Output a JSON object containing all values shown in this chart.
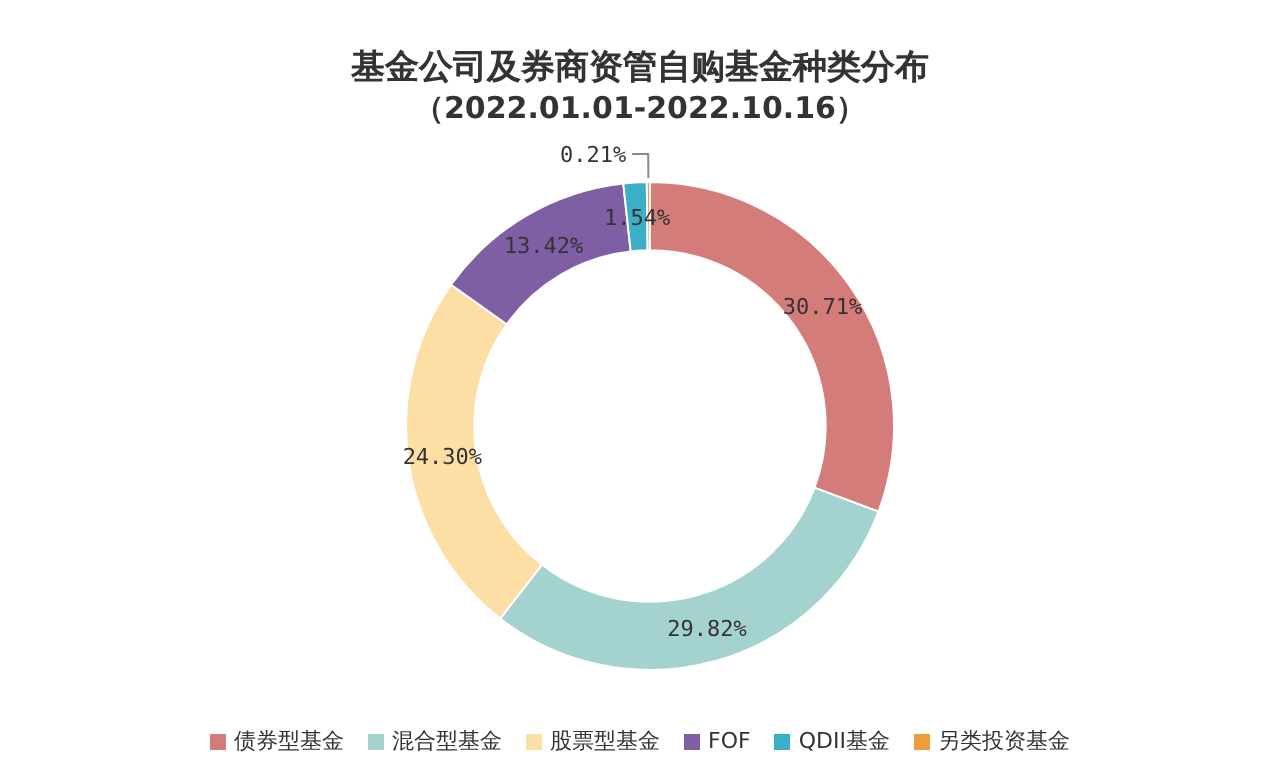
{
  "chart_data": {
    "type": "donut",
    "title": "基金公司及券商资管自购基金种类分布",
    "subtitle": "（2022.01.01-2022.10.16）",
    "categories": [
      "债券型基金",
      "混合型基金",
      "股票型基金",
      "FOF",
      "QDII基金",
      "另类投资基金"
    ],
    "values": [
      30.71,
      29.82,
      24.3,
      13.42,
      1.54,
      0.21
    ],
    "colors": [
      "#d47c7a",
      "#a3d2cf",
      "#fddfa6",
      "#7e5fa4",
      "#3aafc7",
      "#f29a3e"
    ],
    "value_labels": [
      "30.71%",
      "29.82%",
      "24.30%",
      "13.42%",
      "1.54%",
      "0.21%"
    ],
    "legend": "bottom"
  }
}
